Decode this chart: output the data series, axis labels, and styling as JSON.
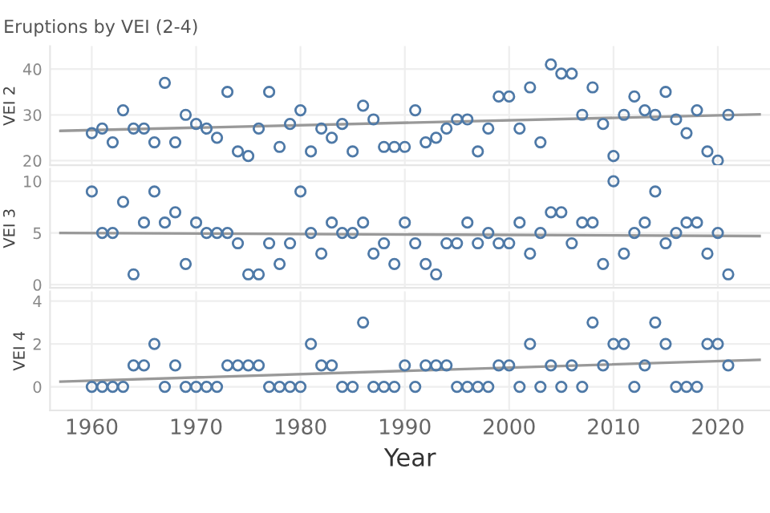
{
  "chart_data": [
    {
      "type": "scatter",
      "title": "Eruptions by VEI (2-4)",
      "ylabel": "VEI 2",
      "xlim": [
        1956,
        2025
      ],
      "xticks": [
        1960,
        1970,
        1980,
        1990,
        2000,
        2010,
        2020
      ],
      "ylim": [
        19,
        45
      ],
      "yticks": [
        20,
        30,
        40
      ],
      "grid": true,
      "marker": "circle",
      "tick_labels": "y",
      "series": [
        {
          "color": "#4e79a7",
          "x": [
            1960,
            1961,
            1962,
            1963,
            1964,
            1965,
            1966,
            1967,
            1968,
            1969,
            1970,
            1971,
            1972,
            1973,
            1974,
            1975,
            1976,
            1977,
            1978,
            1979,
            1980,
            1981,
            1982,
            1983,
            1984,
            1985,
            1986,
            1987,
            1988,
            1989,
            1990,
            1991,
            1992,
            1993,
            1994,
            1995,
            1996,
            1997,
            1998,
            1999,
            2000,
            2001,
            2002,
            2003,
            2004,
            2005,
            2006,
            2007,
            2008,
            2009,
            2010,
            2011,
            2012,
            2013,
            2014,
            2015,
            2016,
            2017,
            2018,
            2019,
            2020,
            2021
          ],
          "values": [
            26,
            27,
            24,
            31,
            27,
            27,
            24,
            37,
            24,
            30,
            28,
            27,
            25,
            35,
            22,
            21,
            27,
            35,
            23,
            28,
            31,
            22,
            27,
            25,
            28,
            22,
            32,
            29,
            23,
            23,
            23,
            31,
            24,
            25,
            27,
            29,
            29,
            22,
            27,
            34,
            34,
            27,
            36,
            24,
            41,
            39,
            39,
            30,
            36,
            28,
            21,
            30,
            34,
            31,
            30,
            35,
            29,
            26,
            31,
            22,
            20,
            30
          ]
        },
        {
          "type": "line",
          "marker": "none",
          "color": "#999999",
          "x": [
            1957,
            2024
          ],
          "values": [
            26.5,
            30.1
          ]
        }
      ]
    },
    {
      "type": "scatter",
      "ylabel": "VEI 3",
      "xlim": [
        1956,
        2025
      ],
      "xticks": [
        1960,
        1970,
        1980,
        1990,
        2000,
        2010,
        2020
      ],
      "ylim": [
        -0.3,
        11.2
      ],
      "yticks": [
        0,
        5,
        10
      ],
      "grid": true,
      "marker": "circle",
      "tick_labels": "y",
      "series": [
        {
          "color": "#4e79a7",
          "x": [
            1960,
            1961,
            1962,
            1963,
            1964,
            1965,
            1966,
            1967,
            1968,
            1969,
            1970,
            1971,
            1972,
            1973,
            1974,
            1975,
            1976,
            1977,
            1978,
            1979,
            1980,
            1981,
            1982,
            1983,
            1984,
            1985,
            1986,
            1987,
            1988,
            1989,
            1990,
            1991,
            1992,
            1993,
            1994,
            1995,
            1996,
            1997,
            1998,
            1999,
            2000,
            2001,
            2002,
            2003,
            2004,
            2005,
            2006,
            2007,
            2008,
            2009,
            2010,
            2011,
            2012,
            2013,
            2014,
            2015,
            2016,
            2017,
            2018,
            2019,
            2020,
            2021
          ],
          "values": [
            9,
            5,
            5,
            8,
            1,
            6,
            9,
            6,
            7,
            2,
            6,
            5,
            5,
            5,
            4,
            1,
            1,
            4,
            2,
            4,
            9,
            5,
            3,
            6,
            5,
            5,
            6,
            3,
            4,
            2,
            6,
            4,
            2,
            1,
            4,
            4,
            6,
            4,
            5,
            4,
            4,
            6,
            3,
            5,
            7,
            7,
            4,
            6,
            6,
            2,
            10,
            3,
            5,
            6,
            9,
            4,
            5,
            6,
            6,
            3,
            5,
            1
          ]
        },
        {
          "type": "line",
          "marker": "none",
          "color": "#999999",
          "x": [
            1957,
            2024
          ],
          "values": [
            5.0,
            4.7
          ]
        }
      ]
    },
    {
      "type": "scatter",
      "ylabel": "VEI 4",
      "xlabel": "Year",
      "xlim": [
        1956,
        2025
      ],
      "xticks": [
        1960,
        1970,
        1980,
        1990,
        2000,
        2010,
        2020
      ],
      "ylim": [
        -1.1,
        4.45
      ],
      "yticks": [
        0,
        2,
        4
      ],
      "grid": true,
      "marker": "circle",
      "series": [
        {
          "color": "#4e79a7",
          "x": [
            1960,
            1961,
            1962,
            1963,
            1964,
            1965,
            1966,
            1967,
            1968,
            1969,
            1970,
            1971,
            1972,
            1973,
            1974,
            1975,
            1976,
            1977,
            1978,
            1979,
            1980,
            1981,
            1982,
            1983,
            1984,
            1985,
            1986,
            1987,
            1988,
            1989,
            1990,
            1991,
            1992,
            1993,
            1994,
            1995,
            1996,
            1997,
            1998,
            1999,
            2000,
            2001,
            2002,
            2003,
            2004,
            2005,
            2006,
            2007,
            2008,
            2009,
            2010,
            2011,
            2012,
            2013,
            2014,
            2015,
            2016,
            2017,
            2018,
            2019,
            2020,
            2021
          ],
          "values": [
            0,
            0,
            0,
            0,
            1,
            1,
            2,
            0,
            1,
            0,
            0,
            0,
            0,
            1,
            1,
            1,
            1,
            0,
            0,
            0,
            0,
            2,
            1,
            1,
            0,
            0,
            3,
            0,
            0,
            0,
            1,
            0,
            1,
            1,
            1,
            0,
            0,
            0,
            0,
            1,
            1,
            0,
            2,
            0,
            1,
            0,
            1,
            0,
            3,
            1,
            2,
            2,
            0,
            1,
            3,
            2,
            0,
            0,
            0,
            2,
            2,
            1
          ]
        },
        {
          "type": "line",
          "marker": "none",
          "color": "#999999",
          "x": [
            1957,
            2024
          ],
          "values": [
            0.24,
            1.26
          ]
        }
      ]
    }
  ]
}
